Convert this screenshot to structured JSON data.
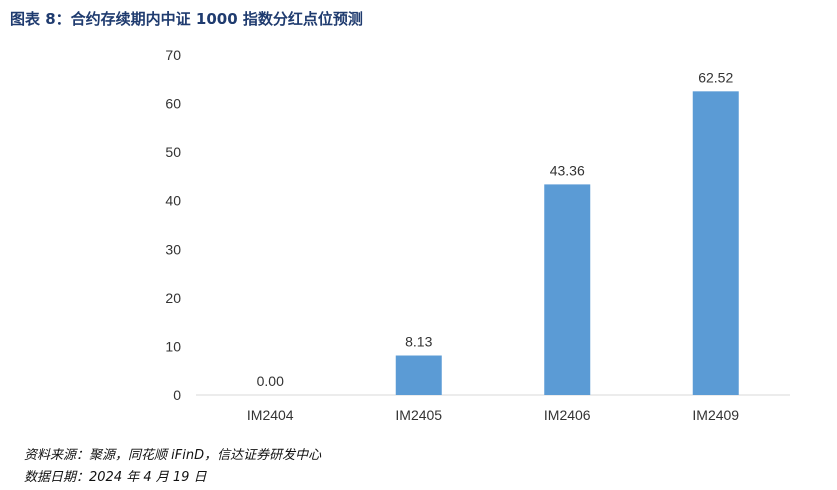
{
  "title": "图表 8：合约存续期内中证 1000 指数分红点位预测",
  "chart_data": {
    "type": "bar",
    "title": "图表 8：合约存续期内中证 1000 指数分红点位预测",
    "categories": [
      "IM2404",
      "IM2405",
      "IM2406",
      "IM2409"
    ],
    "values": [
      0.0,
      8.13,
      43.36,
      62.52
    ],
    "value_labels": [
      "0.00",
      "8.13",
      "43.36",
      "62.52"
    ],
    "xlabel": "",
    "ylabel": "",
    "ylim": [
      0,
      70
    ],
    "yticks": [
      0,
      10,
      20,
      30,
      40,
      50,
      60,
      70
    ],
    "grid": false,
    "bar_color": "#5b9bd5"
  },
  "footer": {
    "source": "资料来源：聚源，同花顺 iFinD，信达证券研发中心",
    "date": "数据日期：2024 年 4 月 19 日"
  }
}
